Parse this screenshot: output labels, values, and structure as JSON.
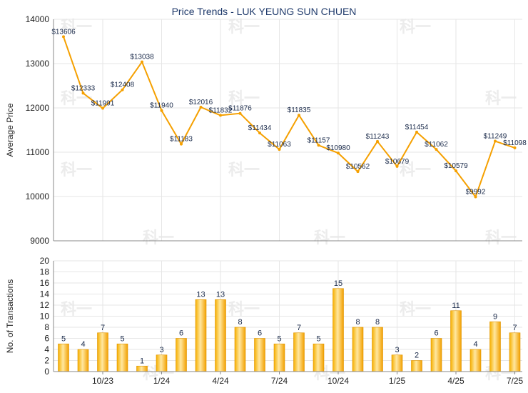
{
  "chart_data": [
    {
      "type": "line",
      "title": "Price Trends - LUK YEUNG SUN CHUEN",
      "ylabel": "Average Price",
      "ylim": [
        9000,
        14000
      ],
      "yticks": [
        "9000",
        "10000",
        "11000",
        "12000",
        "13000",
        "14000"
      ],
      "color": "#f5a000",
      "values": [
        13606,
        12333,
        11991,
        12408,
        13038,
        11940,
        11183,
        12016,
        11832,
        11876,
        11434,
        11063,
        11835,
        11157,
        10980,
        10562,
        11243,
        10679,
        11454,
        11062,
        10579,
        9992,
        11249,
        11098
      ],
      "labels": [
        "$13606",
        "$12333",
        "$11991",
        "$12408",
        "$13038",
        "$11940",
        "$11183",
        "$12016",
        "$11832",
        "$11876",
        "$11434",
        "$11063",
        "$11835",
        "$11157",
        "$10980",
        "$10562",
        "$11243",
        "$10679",
        "$11454",
        "$11062",
        "$10579",
        "$9992",
        "$11249",
        "$11098"
      ]
    },
    {
      "type": "bar",
      "ylabel": "No. of Transactions",
      "ylim": [
        0,
        20
      ],
      "yticks": [
        "0",
        "2",
        "4",
        "6",
        "8",
        "10",
        "12",
        "14",
        "16",
        "18",
        "20"
      ],
      "color": "#f5a000",
      "values": [
        5,
        4,
        7,
        5,
        1,
        3,
        6,
        13,
        13,
        8,
        6,
        5,
        7,
        5,
        15,
        8,
        8,
        3,
        2,
        6,
        11,
        4,
        9,
        7
      ],
      "xtick_labels": [
        "10/23",
        "1/24",
        "4/24",
        "7/24",
        "10/24",
        "1/25",
        "4/25",
        "7/25"
      ],
      "xtick_positions": [
        2,
        5,
        8,
        11,
        14,
        17,
        20,
        23
      ]
    }
  ],
  "watermark": "科一"
}
